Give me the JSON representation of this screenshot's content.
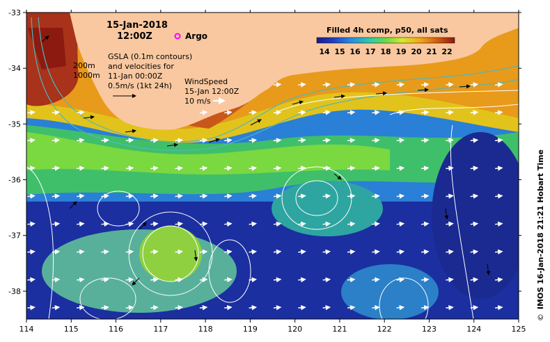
{
  "title": {
    "date": "15-Jan-2018",
    "time": "12:00Z"
  },
  "argo_legend": "Argo",
  "gsla_note": {
    "line1": "GSLA (0.1m contours)",
    "line2": "and velocities for",
    "line3": "11-Jan 00:00Z",
    "scale": "0.5m/s (1kt 24h)"
  },
  "isobaths": [
    "200m",
    "1000m"
  ],
  "wind_note": {
    "line1": "WindSpeed",
    "line2": "15-Jan 12:00Z",
    "line3": "10 m/s"
  },
  "colorbar": {
    "title": "Filled 4h comp, p50, all sats",
    "ticks": [
      "14",
      "15",
      "16",
      "17",
      "18",
      "19",
      "20",
      "21",
      "22"
    ],
    "min": 13.5,
    "max": 22.5
  },
  "axes": {
    "x_ticks": [
      "114",
      "115",
      "116",
      "117",
      "118",
      "119",
      "120",
      "121",
      "122",
      "123",
      "124",
      "125"
    ],
    "y_ticks": [
      "-33",
      "-34",
      "-35",
      "-36",
      "-37",
      "-38"
    ],
    "lon_range": [
      114,
      125
    ],
    "lat_range": [
      -38.5,
      -33
    ]
  },
  "credit": "IMOS 16-Jan-2018 21:21 Hobart Time",
  "colors": {
    "land": "#F9C8A0",
    "isobath": "#4FB8B8",
    "contour": "#FFFFFF",
    "argo": "#FF00FF"
  }
}
